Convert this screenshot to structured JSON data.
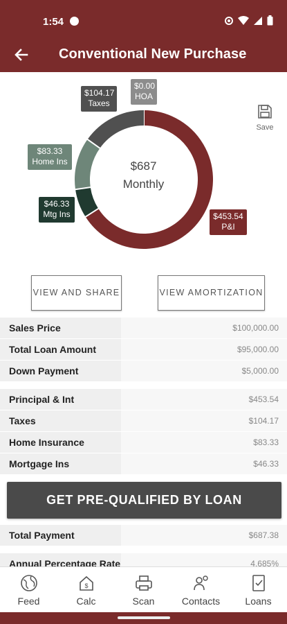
{
  "status_bar": {
    "time": "1:54"
  },
  "header": {
    "title": "Conventional New Purchase"
  },
  "chart": {
    "center_amount": "$687",
    "center_label": "Monthly",
    "segments": [
      {
        "name": "P&I",
        "amount": "$453.54",
        "value": 453.54,
        "color": "#7a2b2b"
      },
      {
        "name": "Mtg Ins",
        "amount": "$46.33",
        "value": 46.33,
        "color": "#203a30"
      },
      {
        "name": "Home Ins",
        "amount": "$83.33",
        "value": 83.33,
        "color": "#6e8679"
      },
      {
        "name": "Taxes",
        "amount": "$104.17",
        "value": 104.17,
        "color": "#505050"
      },
      {
        "name": "HOA",
        "amount": "$0.00",
        "value": 0,
        "color": "#8c8c8c"
      }
    ]
  },
  "save": {
    "label": "Save"
  },
  "buttons": {
    "view_share": "VIEW AND SHARE",
    "view_amortization": "VIEW AMORTIZATION"
  },
  "summary_rows": [
    {
      "label": "Sales Price",
      "value": "$100,000.00"
    },
    {
      "label": "Total Loan Amount",
      "value": "$95,000.00"
    },
    {
      "label": "Down Payment",
      "value": "$5,000.00"
    }
  ],
  "payment_rows": [
    {
      "label": "Principal & Int",
      "value": "$453.54"
    },
    {
      "label": "Taxes",
      "value": "$104.17"
    },
    {
      "label": "Home Insurance",
      "value": "$83.33"
    },
    {
      "label": "Mortgage Ins",
      "value": "$46.33"
    }
  ],
  "cta": {
    "label": "GET PRE-QUALIFIED BY LOAN"
  },
  "totals_rows": [
    {
      "label": "Total Payment",
      "value": "$687.38"
    },
    {
      "label": "Annual Percentage Rate",
      "value": "4.685%"
    }
  ],
  "bottom_nav": [
    {
      "label": "Feed",
      "icon": "globe-icon"
    },
    {
      "label": "Calc",
      "icon": "calculator-icon"
    },
    {
      "label": "Scan",
      "icon": "scanner-icon"
    },
    {
      "label": "Contacts",
      "icon": "contacts-icon"
    },
    {
      "label": "Loans",
      "icon": "loan-document-icon"
    }
  ],
  "colors": {
    "brand": "#7a2b2b",
    "dark_button": "#4a4a4a"
  }
}
